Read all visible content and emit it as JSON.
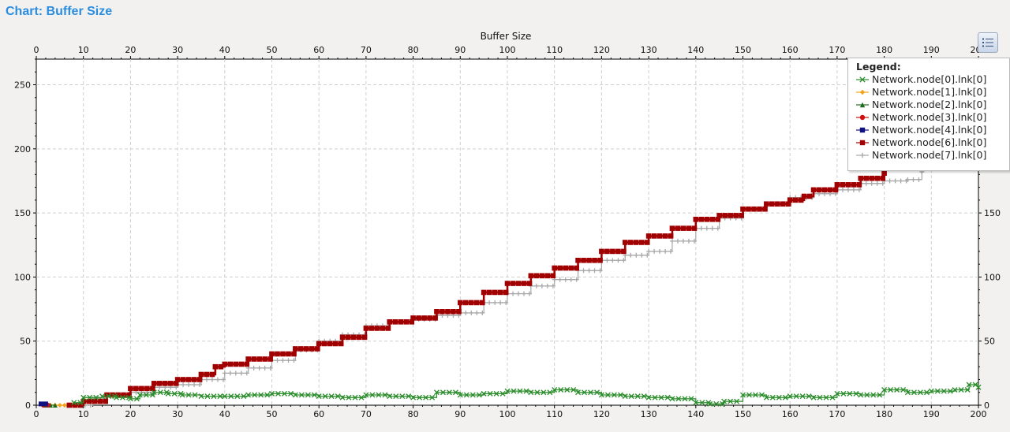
{
  "panel": {
    "title": "Chart: Buffer Size"
  },
  "toolbar": {
    "legend_button_icon": "list-icon"
  },
  "legend": {
    "title": "Legend:",
    "items": [
      {
        "label": "Network.node[0].lnk[0]",
        "color": "#2a8c2a",
        "marker": "cross"
      },
      {
        "label": "Network.node[1].lnk[0]",
        "color": "#f2a51c",
        "marker": "diamond"
      },
      {
        "label": "Network.node[2].lnk[0]",
        "color": "#1d6b1d",
        "marker": "triangle"
      },
      {
        "label": "Network.node[3].lnk[0]",
        "color": "#d01010",
        "marker": "circle"
      },
      {
        "label": "Network.node[4].lnk[0]",
        "color": "#101080",
        "marker": "square"
      },
      {
        "label": "Network.node[6].lnk[0]",
        "color": "#a00000",
        "marker": "square"
      },
      {
        "label": "Network.node[7].lnk[0]",
        "color": "#a8a8a8",
        "marker": "plus"
      }
    ]
  },
  "chart_data": {
    "type": "line",
    "title": "Buffer Size",
    "xlim": [
      0,
      200
    ],
    "ylim": [
      0,
      270
    ],
    "x_ticks": [
      0,
      10,
      20,
      30,
      40,
      50,
      60,
      70,
      80,
      90,
      100,
      110,
      120,
      130,
      140,
      150,
      160,
      170,
      180,
      190,
      200
    ],
    "y_ticks": [
      0,
      50,
      100,
      150,
      200,
      250
    ],
    "grid": true,
    "legend_position": "top-right",
    "series": [
      {
        "name": "Network.node[0].lnk[0]",
        "color": "#2a8c2a",
        "marker": "cross",
        "x": [
          8,
          10,
          14,
          17,
          20,
          22,
          25,
          28,
          31,
          35,
          40,
          45,
          50,
          55,
          60,
          65,
          70,
          75,
          80,
          85,
          90,
          95,
          100,
          105,
          110,
          115,
          120,
          125,
          130,
          135,
          140,
          143,
          146,
          150,
          155,
          160,
          165,
          170,
          175,
          180,
          185,
          190,
          195,
          198,
          200
        ],
        "y": [
          2,
          6,
          7,
          6,
          5,
          8,
          10,
          9,
          8,
          7,
          7,
          8,
          9,
          8,
          7,
          6,
          8,
          7,
          6,
          10,
          8,
          9,
          11,
          10,
          12,
          10,
          8,
          7,
          6,
          5,
          2,
          1,
          3,
          8,
          6,
          7,
          6,
          9,
          8,
          12,
          10,
          11,
          12,
          16,
          14
        ]
      },
      {
        "name": "Network.node[1].lnk[0]",
        "color": "#f2a51c",
        "marker": "diamond",
        "x": [
          3,
          4,
          5,
          6
        ],
        "y": [
          0,
          0,
          0,
          0
        ]
      },
      {
        "name": "Network.node[2].lnk[0]",
        "color": "#1d6b1d",
        "marker": "triangle",
        "x": [
          2,
          3,
          4
        ],
        "y": [
          0,
          0,
          0
        ]
      },
      {
        "name": "Network.node[3].lnk[0]",
        "color": "#d01010",
        "marker": "circle",
        "x": [
          1.5,
          2.5
        ],
        "y": [
          0,
          0
        ]
      },
      {
        "name": "Network.node[4].lnk[0]",
        "color": "#101080",
        "marker": "square",
        "x": [
          1,
          2
        ],
        "y": [
          1,
          1
        ]
      },
      {
        "name": "Network.node[6].lnk[0]",
        "color": "#a00000",
        "marker": "square",
        "x": [
          7,
          10,
          15,
          20,
          25,
          30,
          35,
          38,
          40,
          45,
          50,
          55,
          60,
          65,
          70,
          75,
          80,
          85,
          90,
          95,
          100,
          105,
          110,
          115,
          120,
          125,
          130,
          135,
          140,
          145,
          150,
          155,
          160,
          163,
          165,
          170,
          175,
          180
        ],
        "y": [
          0,
          3,
          8,
          13,
          17,
          20,
          24,
          30,
          32,
          36,
          40,
          44,
          48,
          53,
          60,
          65,
          68,
          73,
          80,
          88,
          95,
          101,
          107,
          113,
          120,
          127,
          132,
          138,
          145,
          148,
          153,
          157,
          160,
          163,
          168,
          172,
          177,
          181
        ]
      },
      {
        "name": "Network.node[7].lnk[0]",
        "color": "#a8a8a8",
        "marker": "plus",
        "x": [
          8,
          12,
          15,
          20,
          25,
          30,
          35,
          40,
          45,
          50,
          55,
          60,
          65,
          70,
          75,
          80,
          85,
          90,
          95,
          100,
          105,
          110,
          115,
          120,
          125,
          130,
          135,
          140,
          145,
          150,
          155,
          160,
          165,
          170,
          175,
          180,
          185,
          188
        ],
        "y": [
          0,
          5,
          8,
          10,
          14,
          16,
          20,
          25,
          29,
          35,
          43,
          50,
          55,
          62,
          65,
          67,
          70,
          72,
          80,
          87,
          93,
          98,
          105,
          113,
          117,
          120,
          128,
          138,
          146,
          153,
          157,
          162,
          165,
          168,
          173,
          175,
          176,
          182
        ]
      }
    ]
  }
}
